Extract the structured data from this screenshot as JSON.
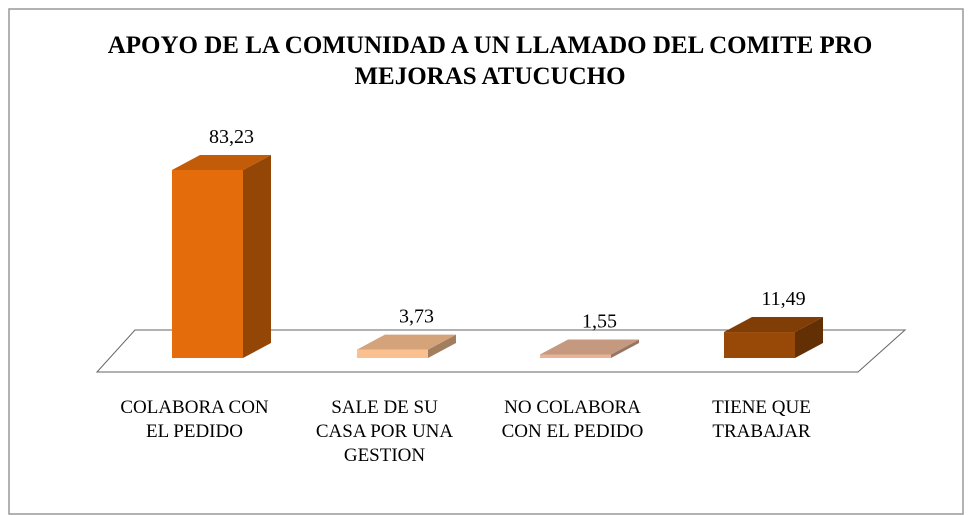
{
  "chart_data": {
    "type": "bar3d",
    "title": "APOYO DE LA COMUNIDAD A UN LLAMADO DEL COMITE PRO MEJORAS ATUCUCHO",
    "categories": [
      "COLABORA CON EL PEDIDO",
      "SALE DE SU CASA POR UNA GESTION",
      "NO COLABORA CON EL PEDIDO",
      "TIENE QUE TRABAJAR"
    ],
    "values": [
      83.23,
      3.73,
      1.55,
      11.49
    ],
    "value_labels": [
      "83,23",
      "3,73",
      "1,55",
      "11,49"
    ],
    "colors": [
      "#e46c0a",
      "#fac090",
      "#e8b496",
      "#984807"
    ]
  }
}
